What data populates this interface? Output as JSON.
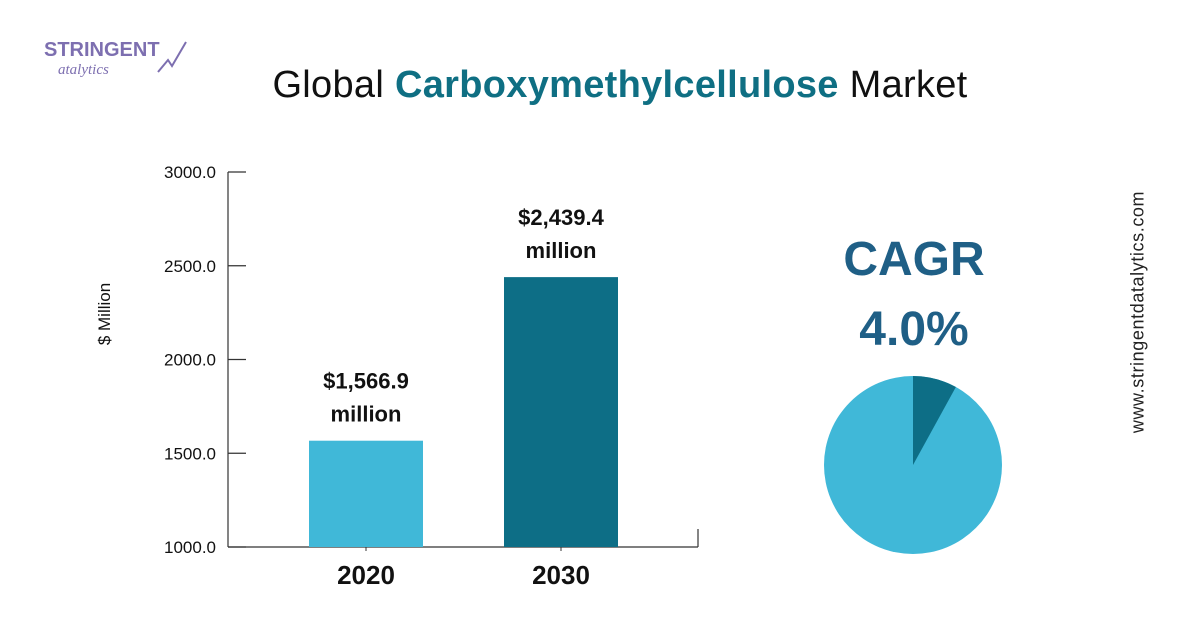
{
  "brand": {
    "logo_text_top": "STRINGENT",
    "logo_text_bottom": "atalytics",
    "website": "www.stringentdatalytics.com"
  },
  "header": {
    "title_prefix": "Global",
    "title_highlight": "Carboxymethylcellulose",
    "title_suffix": "Market"
  },
  "colors": {
    "bar_2020": "#40b8d8",
    "bar_2030": "#0d6e86",
    "pie_main": "#40b8d8",
    "pie_slice": "#0d6e86",
    "cagr_text": "#1f5f86",
    "title_highlight": "#0f6f83"
  },
  "cagr": {
    "label": "CAGR",
    "value_text": "4.0%",
    "pie_fraction": 0.08
  },
  "chart_data": {
    "type": "bar",
    "categories": [
      "2020",
      "2030"
    ],
    "values": [
      1566.9,
      2439.4
    ],
    "data_labels": [
      [
        "$1,566.9",
        "million"
      ],
      [
        "$2,439.4",
        "million"
      ]
    ],
    "ylabel": "$ Million",
    "ylim": [
      1000,
      3000
    ],
    "yticks": [
      "1000.0",
      "1500.0",
      "2000.0",
      "2500.0",
      "3000.0"
    ],
    "grid": false
  }
}
